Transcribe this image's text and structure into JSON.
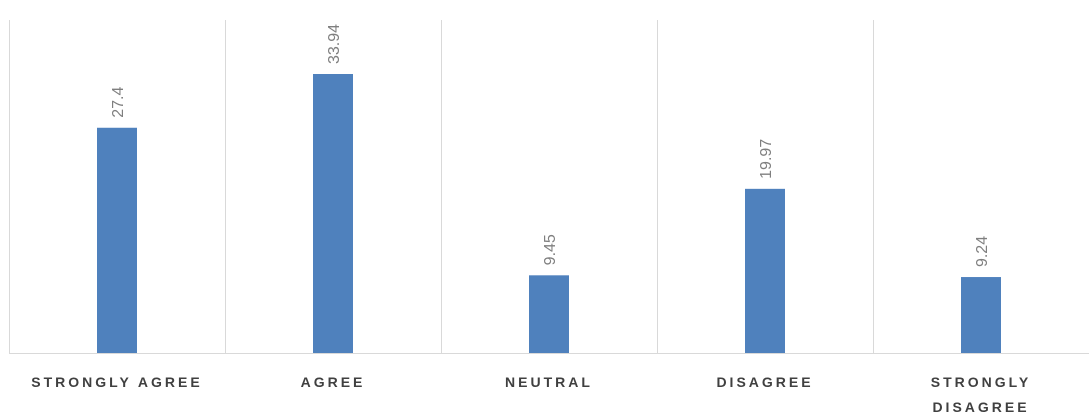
{
  "chart_data": {
    "type": "bar",
    "categories": [
      "STRONGLY AGREE",
      "AGREE",
      "NEUTRAL",
      "DISAGREE",
      "STRONGLY DISAGREE"
    ],
    "category_lines": [
      [
        "STRONGLY AGREE"
      ],
      [
        "AGREE"
      ],
      [
        "NEUTRAL"
      ],
      [
        "DISAGREE"
      ],
      [
        "STRONGLY",
        "DISAGREE"
      ]
    ],
    "values": [
      27.4,
      33.94,
      9.45,
      19.97,
      9.24
    ],
    "data_labels": [
      "27.4",
      "33.94",
      "9.45",
      "19.97",
      "9.24"
    ],
    "title": "",
    "xlabel": "",
    "ylabel": "",
    "ylim": [
      0,
      35
    ],
    "grid": "vertical category separators",
    "legend": "none",
    "colors": {
      "bar": "#4f81bd",
      "grid": "#d9d9d9",
      "data_label": "#7f7f7f",
      "category_label": "#404040"
    }
  }
}
